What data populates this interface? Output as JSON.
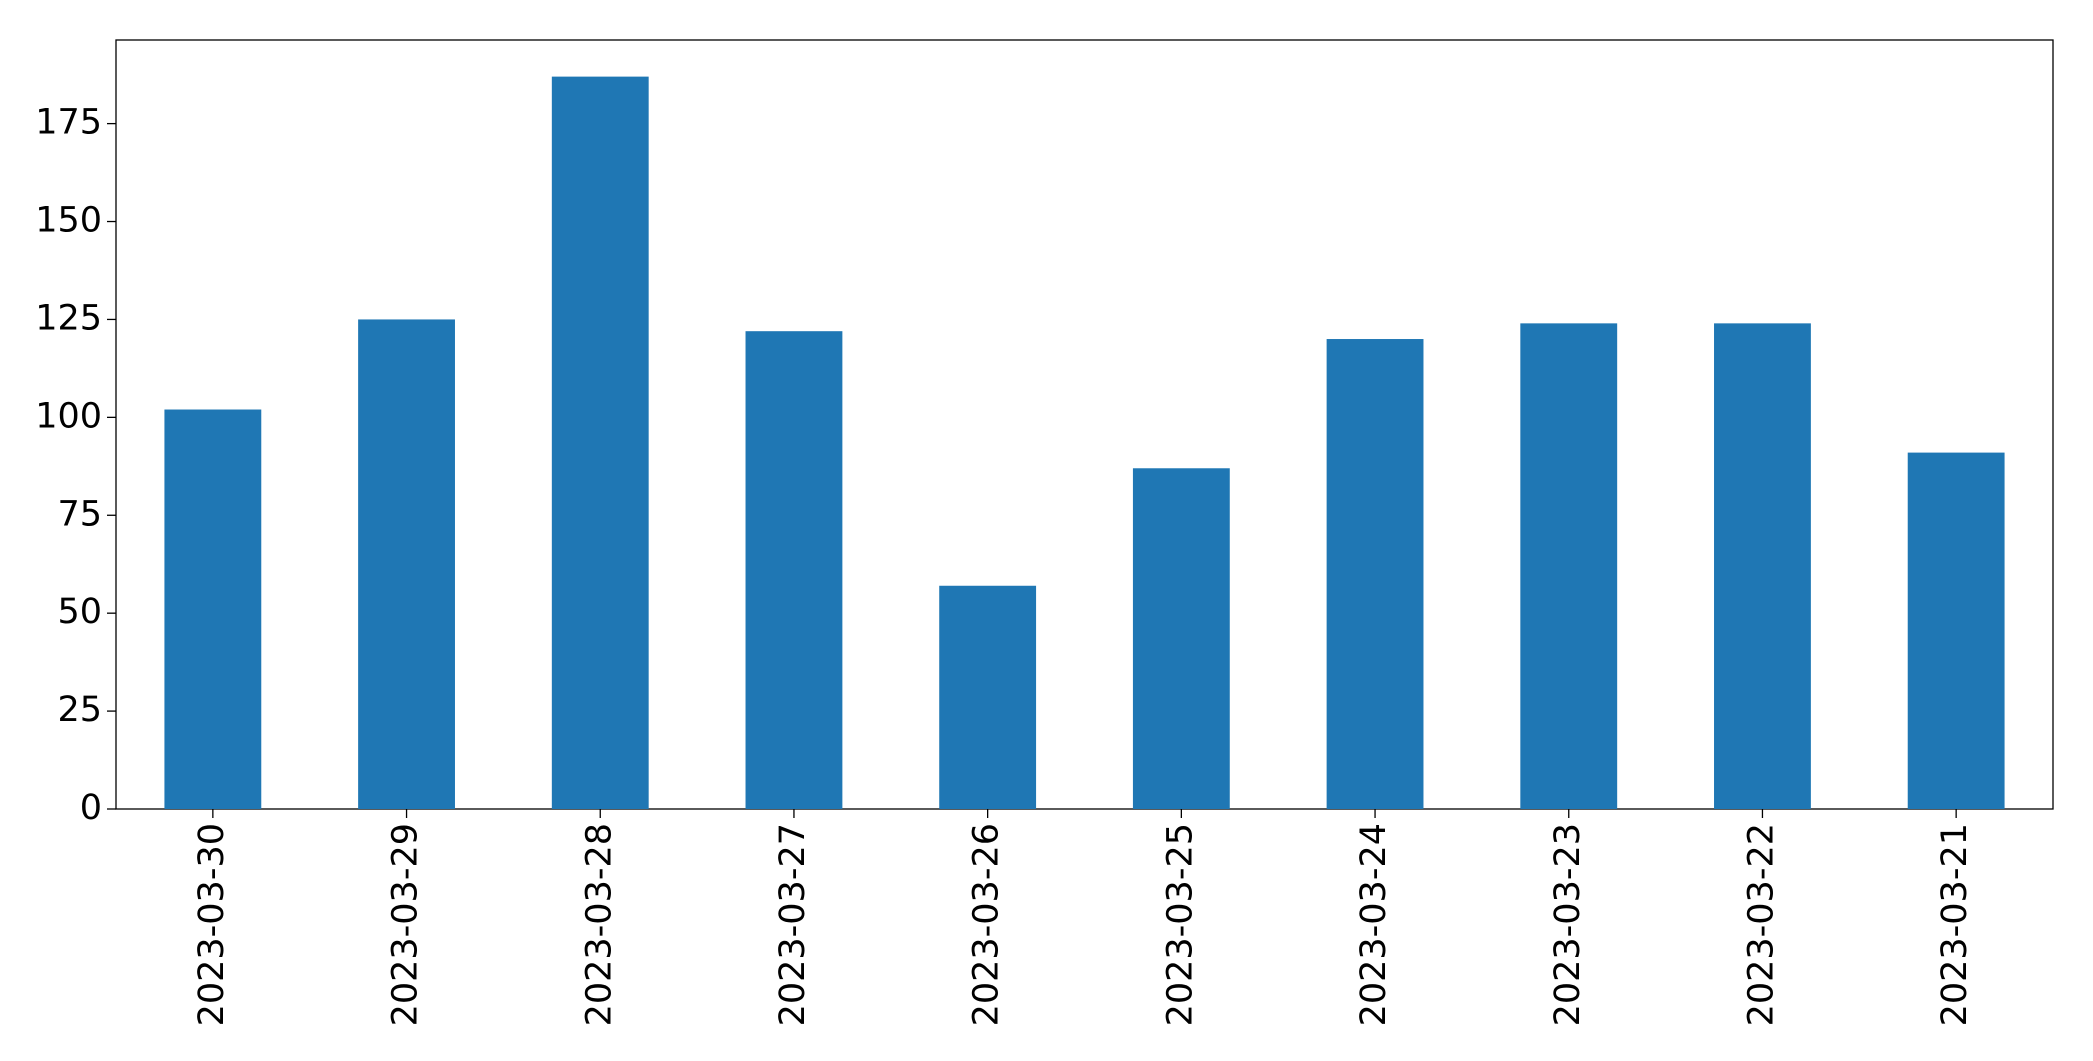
{
  "chart_data": {
    "type": "bar",
    "categories": [
      "2023-03-30",
      "2023-03-29",
      "2023-03-28",
      "2023-03-27",
      "2023-03-26",
      "2023-03-25",
      "2023-03-24",
      "2023-03-23",
      "2023-03-22",
      "2023-03-21"
    ],
    "values": [
      102,
      125,
      187,
      122,
      57,
      87,
      120,
      124,
      124,
      91
    ],
    "color": "#1f77b4",
    "ylim": [
      0,
      196.35
    ],
    "yticks": [
      0,
      25,
      50,
      75,
      100,
      125,
      150,
      175
    ],
    "grid": false
  }
}
